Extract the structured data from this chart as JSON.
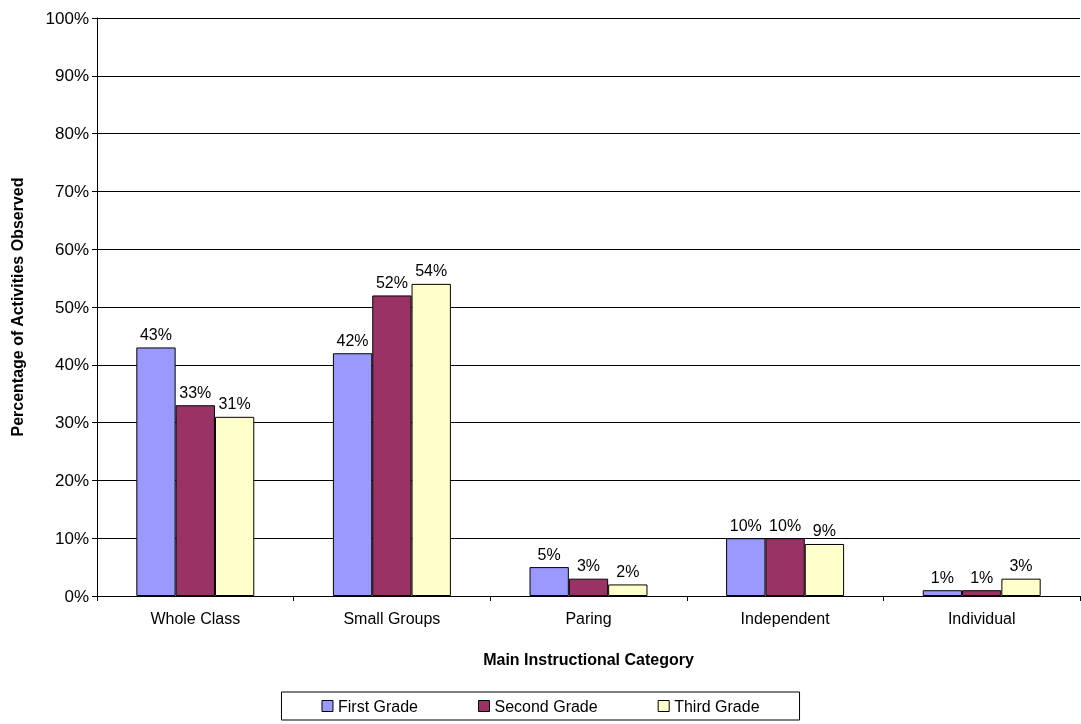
{
  "chart_data": {
    "type": "bar",
    "xlabel": "Main Instructional Category",
    "ylabel": "Percentage of Activities Observed",
    "categories": [
      "Whole Class",
      "Small Groups",
      "Paring",
      "Independent",
      "Individual"
    ],
    "series": [
      {
        "name": "First Grade",
        "color": "#9999ff",
        "values": [
          43,
          42,
          5,
          10,
          1
        ],
        "value_labels": [
          "43%",
          "42%",
          "5%",
          "10%",
          "1%"
        ]
      },
      {
        "name": "Second Grade",
        "color": "#993366",
        "values": [
          33,
          52,
          3,
          10,
          1
        ],
        "value_labels": [
          "33%",
          "52%",
          "3%",
          "10%",
          "1%"
        ]
      },
      {
        "name": "Third Grade",
        "color": "#ffffcc",
        "values": [
          31,
          54,
          2,
          9,
          3
        ],
        "value_labels": [
          "31%",
          "54%",
          "2%",
          "9%",
          "3%"
        ]
      }
    ],
    "ylim": [
      0,
      100
    ],
    "yticks": [
      {
        "value": 0,
        "label": "0%"
      },
      {
        "value": 10,
        "label": "10%"
      },
      {
        "value": 20,
        "label": "20%"
      },
      {
        "value": 30,
        "label": "30%"
      },
      {
        "value": 40,
        "label": "40%"
      },
      {
        "value": 50,
        "label": "50%"
      },
      {
        "value": 60,
        "label": "60%"
      },
      {
        "value": 70,
        "label": "70%"
      },
      {
        "value": 80,
        "label": "80%"
      },
      {
        "value": 90,
        "label": "90%"
      },
      {
        "value": 100,
        "label": "100%"
      }
    ],
    "grid": "y",
    "legend": "bottom"
  }
}
